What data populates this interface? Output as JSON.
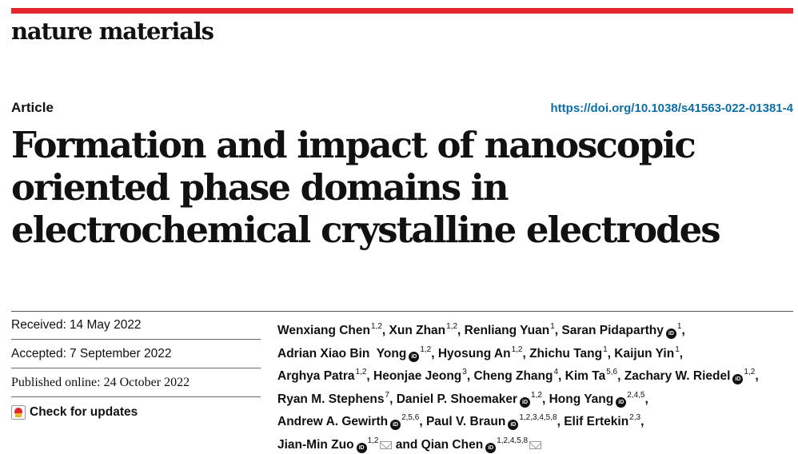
{
  "header": {
    "journal": "nature materials",
    "article_type": "Article",
    "doi": "https://doi.org/10.1038/s41563-022-01381-4"
  },
  "title": "Formation and impact of nanoscopic oriented phase domains in electrochemical crystalline electrodes",
  "dates": {
    "received_label": "Received:",
    "received": "14 May 2022",
    "accepted_label": "Accepted:",
    "accepted": "7 September 2022",
    "published_label": "Published online:",
    "published": "24 October 2022",
    "check_updates": "Check for updates"
  },
  "authors": {
    "a1": "Wenxiang Chen",
    "s1": "1,2",
    "a2": "Xun Zhan",
    "s2": "1,2",
    "a3": "Renliang Yuan",
    "s3": "1",
    "a4": "Saran Pidaparthy",
    "s4": "1",
    "a5": "Adrian Xiao Bin  Yong",
    "s5": "1,2",
    "a6": "Hyosung An",
    "s6": "1,2",
    "a7": "Zhichu Tang",
    "s7": "1",
    "a8": "Kaijun Yin",
    "s8": "1",
    "a9": "Arghya Patra",
    "s9": "1,2",
    "a10": "Heonjae Jeong",
    "s10": "3",
    "a11": "Cheng Zhang",
    "s11": "4",
    "a12": "Kim Ta",
    "s12": "5,6",
    "a13": "Zachary W. Riedel",
    "s13": "1,2",
    "a14": "Ryan M. Stephens",
    "s14": "7",
    "a15": "Daniel P. Shoemaker",
    "s15": "1,2",
    "a16": "Hong Yang",
    "s16": "2,4,5",
    "a17": "Andrew A. Gewirth",
    "s17": "2,5,6",
    "a18": "Paul V. Braun",
    "s18": "1,2,3,4,5,8",
    "a19": "Elif Ertekin",
    "s19": "2,3",
    "a20": "Jian-Min Zuo",
    "s20": "1,2",
    "conj": "and",
    "a21": "Qian Chen",
    "s21": "1,2,4,5,8"
  },
  "icons": {
    "orcid": "iD",
    "orcid_icon": "orcid-icon",
    "mail_icon": "mail-icon",
    "update_icon": "check-for-updates-icon"
  },
  "colors": {
    "accent_bar": "#e5252c",
    "doi_link": "#0b6ea8"
  }
}
